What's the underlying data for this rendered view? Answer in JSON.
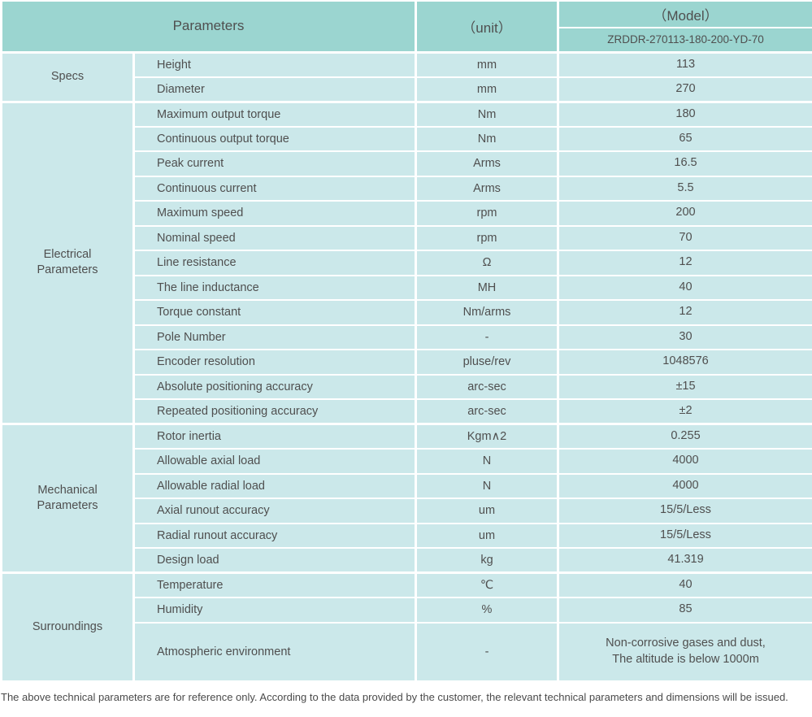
{
  "header": {
    "parameters_label": "Parameters",
    "unit_label": "（unit）",
    "model_label": "（Model）",
    "model_number": "ZRDDR-270113-180-200-YD-70"
  },
  "sections": [
    {
      "label": "Specs",
      "rows": [
        [
          "Height",
          "mm",
          "113"
        ],
        [
          "Diameter",
          "mm",
          "270"
        ]
      ]
    },
    {
      "label": "Electrical Parameters",
      "rows": [
        [
          "Maximum output torque",
          "Nm",
          "180"
        ],
        [
          "Continuous output torque",
          "Nm",
          "65"
        ],
        [
          "Peak current",
          "Arms",
          "16.5"
        ],
        [
          "Continuous current",
          "Arms",
          "5.5"
        ],
        [
          "Maximum speed",
          "rpm",
          "200"
        ],
        [
          "Nominal speed",
          "rpm",
          "70"
        ],
        [
          "Line resistance",
          "Ω",
          "12"
        ],
        [
          "The line inductance",
          "MH",
          "40"
        ],
        [
          "Torque constant",
          "Nm/arms",
          "12"
        ],
        [
          "Pole Number",
          "-",
          "30"
        ],
        [
          "Encoder resolution",
          "pluse/rev",
          "1048576"
        ],
        [
          "Absolute positioning accuracy",
          "arc-sec",
          "±15"
        ],
        [
          "Repeated positioning accuracy",
          "arc-sec",
          "±2"
        ]
      ]
    },
    {
      "label": "Mechanical Parameters",
      "rows": [
        [
          "Rotor inertia",
          "Kgm∧2",
          "0.255"
        ],
        [
          "Allowable axial load",
          "N",
          "4000"
        ],
        [
          "Allowable radial load",
          "N",
          "4000"
        ],
        [
          "Axial runout accuracy",
          "um",
          "15/5/Less"
        ],
        [
          "Radial runout accuracy",
          "um",
          "15/5/Less"
        ],
        [
          "Design load",
          "kg",
          "41.319"
        ]
      ]
    },
    {
      "label": "Surroundings",
      "rows": [
        [
          "Temperature",
          "℃",
          "40"
        ],
        [
          "Humidity",
          "%",
          "85"
        ],
        [
          "Atmospheric environment",
          "-",
          "Non-corrosive gases and dust,\nThe altitude is below 1000m"
        ]
      ]
    }
  ],
  "footer": {
    "note": "The above technical parameters are for reference only. According to the data provided by the customer, the relevant technical parameters and dimensions will be issued."
  },
  "colors": {
    "header_bg": "#9bd5d0",
    "row_bg": "#cbe8ea",
    "border": "#ffffff",
    "text": "#4f4f4f"
  }
}
